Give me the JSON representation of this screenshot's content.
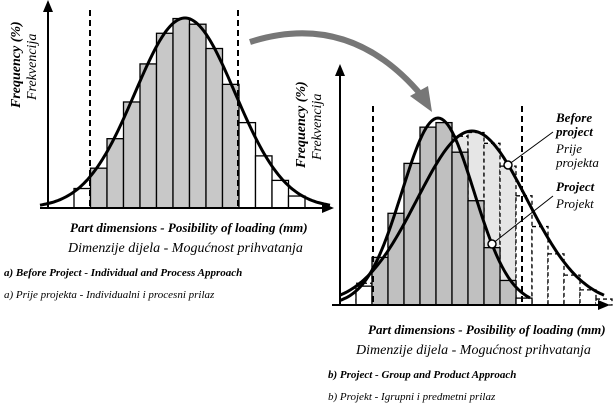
{
  "panels": [
    {
      "y_label": "Frequency (%)",
      "y_label_local": "Frekvencija",
      "x_label": "Part dimensions - Posibility of loading (mm)",
      "x_label_local": "Dimenzije dijela - Mogućnost prihvatanja",
      "caption": "a) Before Project - Individual and Process Approach",
      "caption_local": "a) Prije projekta - Individualni i procesni prilaz"
    },
    {
      "y_label": "Frequency (%)",
      "y_label_local": "Frekvencija",
      "x_label": "Part dimensions - Posibility of loading (mm)",
      "x_label_local": "Dimenzije dijela - Mogućnost prihvatanja",
      "caption": "b) Project - Group and Product Approach",
      "caption_local": "b) Projekt - Igrupni i predmetni prilaz"
    }
  ],
  "legend": [
    {
      "label": [
        "Before",
        "project"
      ],
      "label_local": [
        "Prije",
        "projekta"
      ]
    },
    {
      "label": [
        "Project"
      ],
      "label_local": [
        "Projekt"
      ]
    }
  ]
}
